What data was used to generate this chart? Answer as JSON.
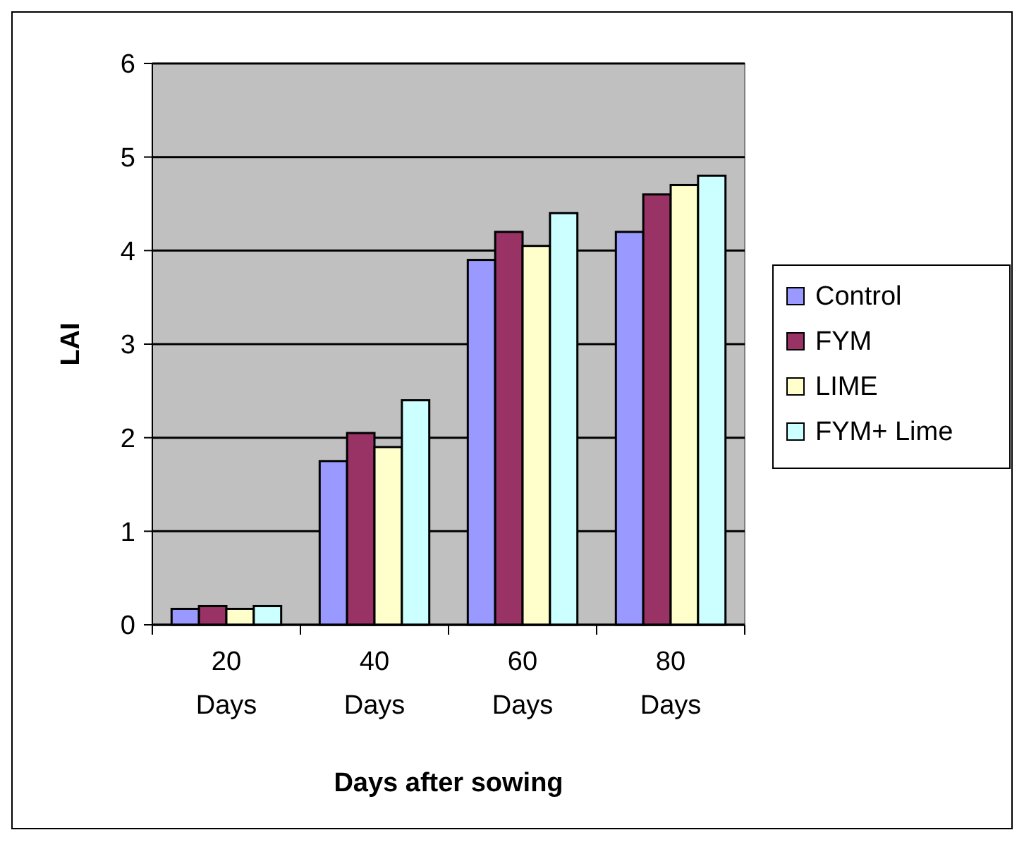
{
  "chart_data": {
    "type": "bar",
    "xlabel": "Days after sowing",
    "ylabel": "LAI",
    "categories": [
      "20 Days",
      "40 Days",
      "60 Days",
      "80 Days"
    ],
    "series": [
      {
        "name": "Control",
        "color": "#9999ff",
        "values": [
          0.17,
          1.75,
          3.9,
          4.2
        ]
      },
      {
        "name": "FYM",
        "color": "#993366",
        "values": [
          0.2,
          2.05,
          4.2,
          4.6
        ]
      },
      {
        "name": "LIME",
        "color": "#ffffcc",
        "values": [
          0.17,
          1.9,
          4.05,
          4.7
        ]
      },
      {
        "name": "FYM+ Lime",
        "color": "#ccffff",
        "values": [
          0.2,
          2.4,
          4.4,
          4.8
        ]
      }
    ],
    "ylim": [
      0,
      6
    ],
    "yticks": [
      0,
      1,
      2,
      3,
      4,
      5,
      6
    ],
    "grid": "y",
    "legend": "right"
  }
}
